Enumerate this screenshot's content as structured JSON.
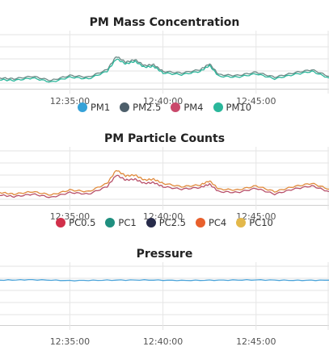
{
  "chart_data": [
    {
      "type": "line",
      "title": "PM Mass Concentration",
      "x_ticks": [
        "12:35:00",
        "12:40:00",
        "12:45:00"
      ],
      "x_range": [
        "12:31:15",
        "12:48:55"
      ],
      "series": [
        {
          "name": "PM1",
          "color": "#36a2d8"
        },
        {
          "name": "PM2.5",
          "color": "#4d5f6b"
        },
        {
          "name": "PM4",
          "color": "#c9496b"
        },
        {
          "name": "PM10",
          "color": "#2ab79b"
        }
      ],
      "plotted_series": [
        {
          "name": "PM2.5",
          "color": "#6a8a86",
          "x": [
            "12:31:15",
            "12:32:00",
            "12:33:00",
            "12:34:00",
            "12:35:00",
            "12:36:00",
            "12:37:00",
            "12:37:30",
            "12:38:00",
            "12:38:30",
            "12:39:00",
            "12:39:30",
            "12:40:00",
            "12:41:00",
            "12:42:00",
            "12:42:30",
            "12:43:00",
            "12:44:00",
            "12:45:00",
            "12:46:00",
            "12:47:00",
            "12:48:00",
            "12:48:55"
          ],
          "y": [
            3.3,
            3.2,
            3.5,
            3.0,
            3.6,
            3.4,
            4.3,
            5.9,
            5.2,
            5.5,
            4.8,
            4.9,
            4.1,
            3.9,
            4.3,
            5.0,
            3.7,
            3.6,
            4.0,
            3.4,
            3.9,
            4.3,
            3.5
          ]
        },
        {
          "name": "PM10",
          "color": "#2ab79b",
          "x": [
            "12:31:15",
            "12:32:00",
            "12:33:00",
            "12:34:00",
            "12:35:00",
            "12:36:00",
            "12:37:00",
            "12:37:30",
            "12:38:00",
            "12:38:30",
            "12:39:00",
            "12:39:30",
            "12:40:00",
            "12:41:00",
            "12:42:00",
            "12:42:30",
            "12:43:00",
            "12:44:00",
            "12:45:00",
            "12:46:00",
            "12:47:00",
            "12:48:00",
            "12:48:55"
          ],
          "y": [
            3.1,
            3.0,
            3.3,
            2.8,
            3.4,
            3.2,
            4.1,
            5.6,
            5.0,
            5.3,
            4.6,
            4.7,
            3.9,
            3.7,
            4.1,
            4.8,
            3.5,
            3.4,
            3.8,
            3.2,
            3.7,
            4.1,
            3.3
          ]
        }
      ],
      "ylim": [
        2,
        9
      ],
      "grid": true,
      "legend": "bottom"
    },
    {
      "type": "line",
      "title": "PM Particle Counts",
      "x_ticks": [
        "12:35:00",
        "12:40:00",
        "12:45:00"
      ],
      "x_range": [
        "12:31:15",
        "12:48:55"
      ],
      "series": [
        {
          "name": "PC0.5",
          "color": "#d1304a"
        },
        {
          "name": "PC1",
          "color": "#1f8f7f"
        },
        {
          "name": "PC2.5",
          "color": "#272b4a"
        },
        {
          "name": "PC4",
          "color": "#e8602c"
        },
        {
          "name": "PC10",
          "color": "#e3b84a"
        }
      ],
      "plotted_series": [
        {
          "name": "PC4",
          "color": "#e08a3c",
          "x": [
            "12:31:15",
            "12:32:00",
            "12:33:00",
            "12:34:00",
            "12:35:00",
            "12:36:00",
            "12:37:00",
            "12:37:30",
            "12:38:00",
            "12:38:30",
            "12:39:00",
            "12:39:30",
            "12:40:00",
            "12:41:00",
            "12:42:00",
            "12:42:30",
            "12:43:00",
            "12:44:00",
            "12:45:00",
            "12:46:00",
            "12:47:00",
            "12:48:00",
            "12:48:55"
          ],
          "y": [
            3.5,
            3.3,
            3.6,
            3.2,
            3.8,
            3.6,
            4.6,
            6.2,
            5.5,
            5.6,
            5.0,
            5.1,
            4.6,
            4.2,
            4.4,
            4.9,
            3.9,
            3.8,
            4.3,
            3.6,
            4.2,
            4.6,
            3.9
          ]
        },
        {
          "name": "PC0.5",
          "color": "#b8506a",
          "x": [
            "12:31:15",
            "12:32:00",
            "12:33:00",
            "12:34:00",
            "12:35:00",
            "12:36:00",
            "12:37:00",
            "12:37:30",
            "12:38:00",
            "12:38:30",
            "12:39:00",
            "12:39:30",
            "12:40:00",
            "12:41:00",
            "12:42:00",
            "12:42:30",
            "12:43:00",
            "12:44:00",
            "12:45:00",
            "12:46:00",
            "12:47:00",
            "12:48:00",
            "12:48:55"
          ],
          "y": [
            3.2,
            3.0,
            3.3,
            2.9,
            3.5,
            3.3,
            4.2,
            5.6,
            5.0,
            5.1,
            4.6,
            4.7,
            4.2,
            3.9,
            4.1,
            4.5,
            3.6,
            3.5,
            4.0,
            3.3,
            3.9,
            4.3,
            3.6
          ]
        }
      ],
      "ylim": [
        2,
        9
      ],
      "grid": true,
      "legend": "bottom"
    },
    {
      "type": "line",
      "title": "Pressure",
      "x_ticks": [
        "12:35:00",
        "12:40:00",
        "12:45:00"
      ],
      "x_range": [
        "12:31:15",
        "12:48:55"
      ],
      "series": [],
      "plotted_series": [
        {
          "name": "Pressure",
          "color": "#4aa3d9",
          "x": [
            "12:31:15",
            "12:33:00",
            "12:35:00",
            "12:37:00",
            "12:39:00",
            "12:41:00",
            "12:43:00",
            "12:45:00",
            "12:47:00",
            "12:48:55"
          ],
          "y": [
            7.0,
            7.05,
            6.95,
            7.0,
            7.02,
            6.97,
            7.0,
            7.03,
            6.98,
            7.0
          ]
        }
      ],
      "ylim": [
        2,
        9
      ],
      "grid": true,
      "legend": "none"
    }
  ]
}
